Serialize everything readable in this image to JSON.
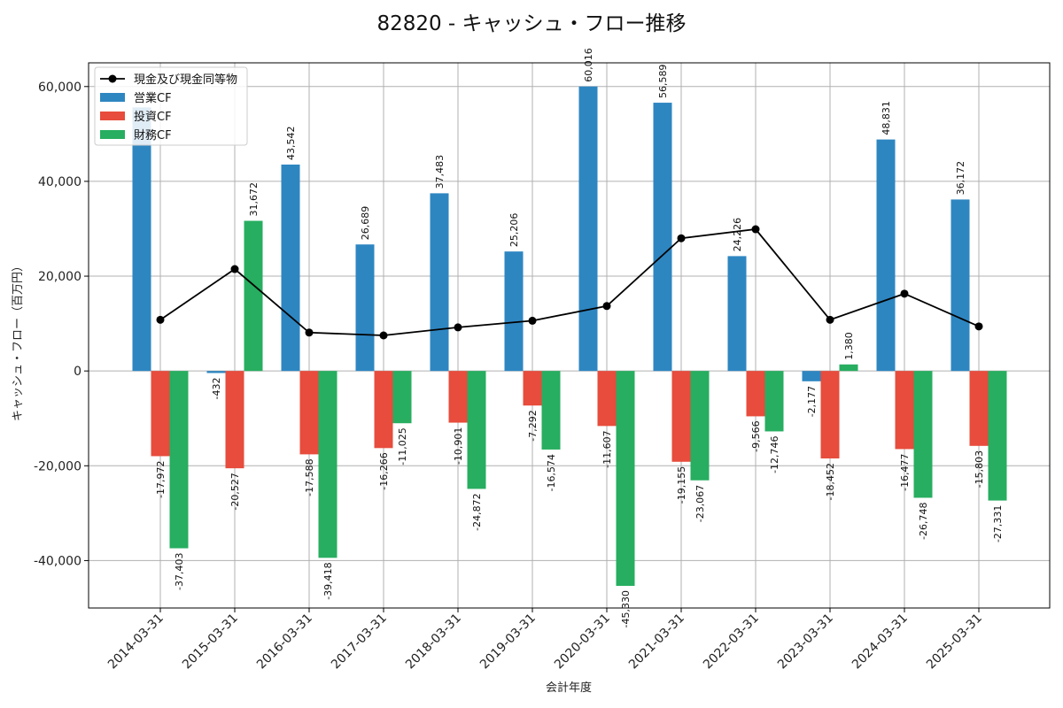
{
  "chart_data": {
    "type": "bar",
    "title": "82820 - キャッシュ・フロー推移",
    "xlabel": "会計年度",
    "ylabel": "キャッシュ・フロー（百万円）",
    "ylim": [
      -50000,
      65000
    ],
    "yticks": [
      -40000,
      -20000,
      0,
      20000,
      40000,
      60000
    ],
    "ytick_labels": [
      "-40,000",
      "-20,000",
      "0",
      "20,000",
      "40,000",
      "60,000"
    ],
    "grid": true,
    "legend_position": "top-left",
    "categories": [
      "2014-03-31",
      "2015-03-31",
      "2016-03-31",
      "2017-03-31",
      "2018-03-31",
      "2019-03-31",
      "2020-03-31",
      "2021-03-31",
      "2022-03-31",
      "2023-03-31",
      "2024-03-31",
      "2025-03-31"
    ],
    "series": [
      {
        "name": "営業CF",
        "kind": "bar",
        "color": "#2e86c1",
        "values": [
          55600,
          -432,
          43542,
          26689,
          37483,
          25206,
          60016,
          56589,
          24226,
          -2177,
          48831,
          36172
        ],
        "labels": [
          "",
          "-432",
          "43,542",
          "26,689",
          "37,483",
          "25,206",
          "60,016",
          "56,589",
          "24,226",
          "-2,177",
          "48,831",
          "36,172"
        ]
      },
      {
        "name": "投資CF",
        "kind": "bar",
        "color": "#e74c3c",
        "values": [
          -17972,
          -20527,
          -17588,
          -16266,
          -10901,
          -7292,
          -11607,
          -19155,
          -9566,
          -18452,
          -16477,
          -15803
        ],
        "labels": [
          "-17,972",
          "-20,527",
          "-17,588",
          "-16,266",
          "-10,901",
          "-7,292",
          "-11,607",
          "-19,155",
          "-9,566",
          "-18,452",
          "-16,477",
          "-15,803"
        ]
      },
      {
        "name": "財務CF",
        "kind": "bar",
        "color": "#27ae60",
        "values": [
          -37403,
          31672,
          -39418,
          -11025,
          -24872,
          -16574,
          -45330,
          -23067,
          -12746,
          1380,
          -26748,
          -27331
        ],
        "labels": [
          "-37,403",
          "31,672",
          "-39,418",
          "-11,025",
          "-24,872",
          "-16,574",
          "-45,330",
          "-23,067",
          "-12,746",
          "1,380",
          "-26,748",
          "-27,331"
        ]
      },
      {
        "name": "現金及び現金同等物",
        "kind": "line",
        "color": "#000000",
        "values": [
          10800,
          21500,
          8100,
          7500,
          9200,
          10600,
          13700,
          28000,
          29900,
          10800,
          16300,
          9400
        ]
      }
    ]
  }
}
